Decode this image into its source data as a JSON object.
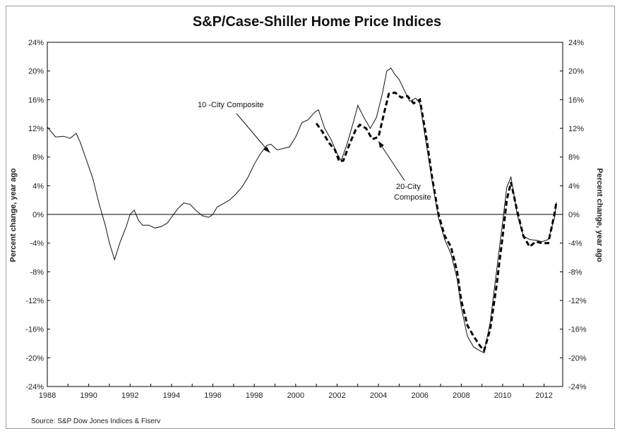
{
  "chart_data": {
    "type": "line",
    "title": "S&P/Case-Shiller Home Price Indices",
    "ylabel_left": "Percent change, year ago",
    "ylabel_right": "Percent change, year ago",
    "source": "Source: S&P Dow Jones Indices & Fiserv",
    "xlim": [
      1988,
      2012.9
    ],
    "ylim": [
      -24,
      24
    ],
    "x_ticks": [
      1988,
      1990,
      1992,
      1994,
      1996,
      1998,
      2000,
      2002,
      2004,
      2006,
      2008,
      2010,
      2012
    ],
    "y_ticks": [
      -24,
      -20,
      -16,
      -12,
      -8,
      -4,
      0,
      4,
      8,
      12,
      16,
      20,
      24
    ],
    "grid": false,
    "series": [
      {
        "name": "10 -City Composite",
        "style": "solid",
        "x": [
          1988.0,
          1988.4,
          1988.8,
          1989.1,
          1989.4,
          1989.6,
          1989.9,
          1990.2,
          1990.5,
          1990.8,
          1991.0,
          1991.25,
          1991.5,
          1991.8,
          1992.0,
          1992.2,
          1992.4,
          1992.6,
          1992.9,
          1993.2,
          1993.5,
          1993.8,
          1994.0,
          1994.3,
          1994.6,
          1994.9,
          1995.2,
          1995.5,
          1995.8,
          1996.0,
          1996.2,
          1996.5,
          1996.8,
          1997.1,
          1997.4,
          1997.7,
          1998.0,
          1998.3,
          1998.6,
          1998.8,
          1999.1,
          1999.4,
          1999.7,
          2000.0,
          2000.3,
          2000.6,
          2000.9,
          2001.1,
          2001.4,
          2001.7,
          2002.0,
          2002.2,
          2002.5,
          2002.8,
          2003.0,
          2003.3,
          2003.6,
          2003.9,
          2004.2,
          2004.4,
          2004.6,
          2004.8,
          2005.0,
          2005.3,
          2005.5,
          2005.8,
          2006.0,
          2006.3,
          2006.6,
          2006.9,
          2007.2,
          2007.5,
          2007.8,
          2008.0,
          2008.3,
          2008.6,
          2008.9,
          2009.1,
          2009.4,
          2009.7,
          2010.0,
          2010.2,
          2010.4,
          2010.7,
          2011.0,
          2011.3,
          2011.6,
          2011.9,
          2012.2,
          2012.5,
          2012.6
        ],
        "values": [
          12.2,
          10.8,
          10.9,
          10.6,
          11.3,
          10.0,
          7.5,
          5.0,
          1.5,
          -1.5,
          -4.0,
          -6.3,
          -4.0,
          -1.8,
          0.0,
          0.6,
          -0.8,
          -1.5,
          -1.5,
          -1.9,
          -1.7,
          -1.2,
          -0.4,
          0.8,
          1.6,
          1.4,
          0.5,
          -0.2,
          -0.4,
          0.0,
          1.0,
          1.5,
          2.0,
          2.8,
          3.8,
          5.2,
          7.0,
          8.5,
          9.6,
          9.8,
          9.0,
          9.2,
          9.4,
          10.8,
          12.8,
          13.2,
          14.2,
          14.6,
          12.0,
          10.5,
          8.5,
          7.5,
          10.0,
          13.0,
          15.2,
          13.5,
          12.0,
          13.5,
          17.0,
          20.0,
          20.4,
          19.5,
          18.8,
          17.0,
          15.8,
          16.2,
          15.5,
          10.0,
          4.5,
          -0.5,
          -3.5,
          -5.5,
          -9.0,
          -13.0,
          -17.0,
          -18.5,
          -19.0,
          -19.3,
          -15.0,
          -8.0,
          -1.0,
          3.8,
          5.2,
          0.0,
          -3.0,
          -3.5,
          -3.6,
          -3.8,
          -3.5,
          -0.5,
          1.7
        ]
      },
      {
        "name": "20-City Composite",
        "style": "dashed",
        "x": [
          2001.0,
          2001.3,
          2001.6,
          2001.9,
          2002.1,
          2002.3,
          2002.6,
          2002.9,
          2003.1,
          2003.4,
          2003.7,
          2004.0,
          2004.3,
          2004.5,
          2004.8,
          2005.1,
          2005.4,
          2005.7,
          2006.0,
          2006.3,
          2006.6,
          2006.9,
          2007.2,
          2007.5,
          2007.8,
          2008.0,
          2008.3,
          2008.6,
          2008.9,
          2009.1,
          2009.4,
          2009.7,
          2010.0,
          2010.2,
          2010.4,
          2010.7,
          2011.0,
          2011.3,
          2011.6,
          2011.9,
          2012.2,
          2012.5,
          2012.6
        ],
        "values": [
          12.7,
          11.5,
          10.0,
          9.0,
          7.4,
          7.5,
          9.8,
          11.8,
          12.5,
          12.0,
          10.5,
          10.8,
          14.5,
          16.8,
          17.0,
          16.3,
          16.5,
          15.5,
          16.0,
          11.0,
          5.0,
          0.0,
          -3.0,
          -4.5,
          -8.0,
          -12.0,
          -15.5,
          -17.0,
          -18.3,
          -19.0,
          -16.0,
          -10.0,
          -3.0,
          2.0,
          4.5,
          0.5,
          -3.0,
          -4.5,
          -3.8,
          -4.0,
          -4.0,
          0.0,
          1.8
        ]
      }
    ],
    "annotations": [
      {
        "text": "10 -City Composite",
        "series": "10 -City Composite"
      },
      {
        "text_lines": [
          "20-City",
          "Composite"
        ],
        "series": "20-City Composite"
      }
    ]
  }
}
